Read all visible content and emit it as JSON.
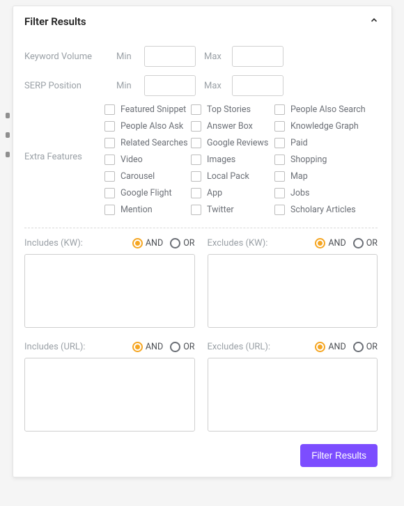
{
  "panel": {
    "title": "Filter Results"
  },
  "keywordVolume": {
    "label": "Keyword Volume",
    "minLabel": "Min",
    "maxLabel": "Max",
    "min": "",
    "max": ""
  },
  "serpPosition": {
    "label": "SERP Position",
    "minLabel": "Min",
    "maxLabel": "Max",
    "min": "",
    "max": ""
  },
  "extraFeatures": {
    "label": "Extra Features",
    "items": [
      [
        "Featured Snippet",
        "Top Stories",
        "People Also Search"
      ],
      [
        "People Also Ask",
        "Answer Box",
        "Knowledge Graph"
      ],
      [
        "Related Searches",
        "Google Reviews",
        "Paid"
      ],
      [
        "Video",
        "Images",
        "Shopping"
      ],
      [
        "Carousel",
        "Local Pack",
        "Map"
      ],
      [
        "Google Flight",
        "App",
        "Jobs"
      ],
      [
        "Mention",
        "Twitter",
        "Scholary Articles"
      ]
    ]
  },
  "logic": {
    "and": "AND",
    "or": "OR"
  },
  "includesKW": {
    "label": "Includes (KW):",
    "mode": "AND",
    "value": ""
  },
  "excludesKW": {
    "label": "Excludes (KW):",
    "mode": "AND",
    "value": ""
  },
  "includesURL": {
    "label": "Includes (URL):",
    "mode": "AND",
    "value": ""
  },
  "excludesURL": {
    "label": "Excludes (URL):",
    "mode": "AND",
    "value": ""
  },
  "actions": {
    "submit": "Filter Results"
  },
  "colors": {
    "accent": "#7c4dff",
    "radioSel": "#f5a623",
    "label": "#9aa0a6",
    "text": "#6b6f76"
  }
}
